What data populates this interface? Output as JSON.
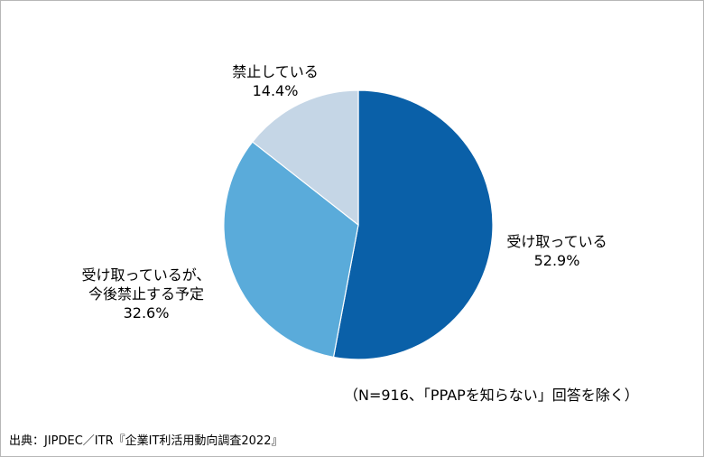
{
  "chart_data": {
    "type": "pie",
    "slices": [
      {
        "label_lines": [
          "受け取っている"
        ],
        "value": 52.9,
        "value_label": "52.9%",
        "color": "#0a60a8"
      },
      {
        "label_lines": [
          "受け取っているが、",
          "今後禁止する予定"
        ],
        "value": 32.6,
        "value_label": "32.6%",
        "color": "#5aabda"
      },
      {
        "label_lines": [
          "禁止している"
        ],
        "value": 14.4,
        "value_label": "14.4%",
        "color": "#c5d6e6"
      }
    ],
    "start": "12 o'clock",
    "direction": "clockwise"
  },
  "note": "（N=916、「PPAPを知らない」回答を除く）",
  "source": "出典：JIPDEC／ITR『企業IT利活用動向調査2022』"
}
